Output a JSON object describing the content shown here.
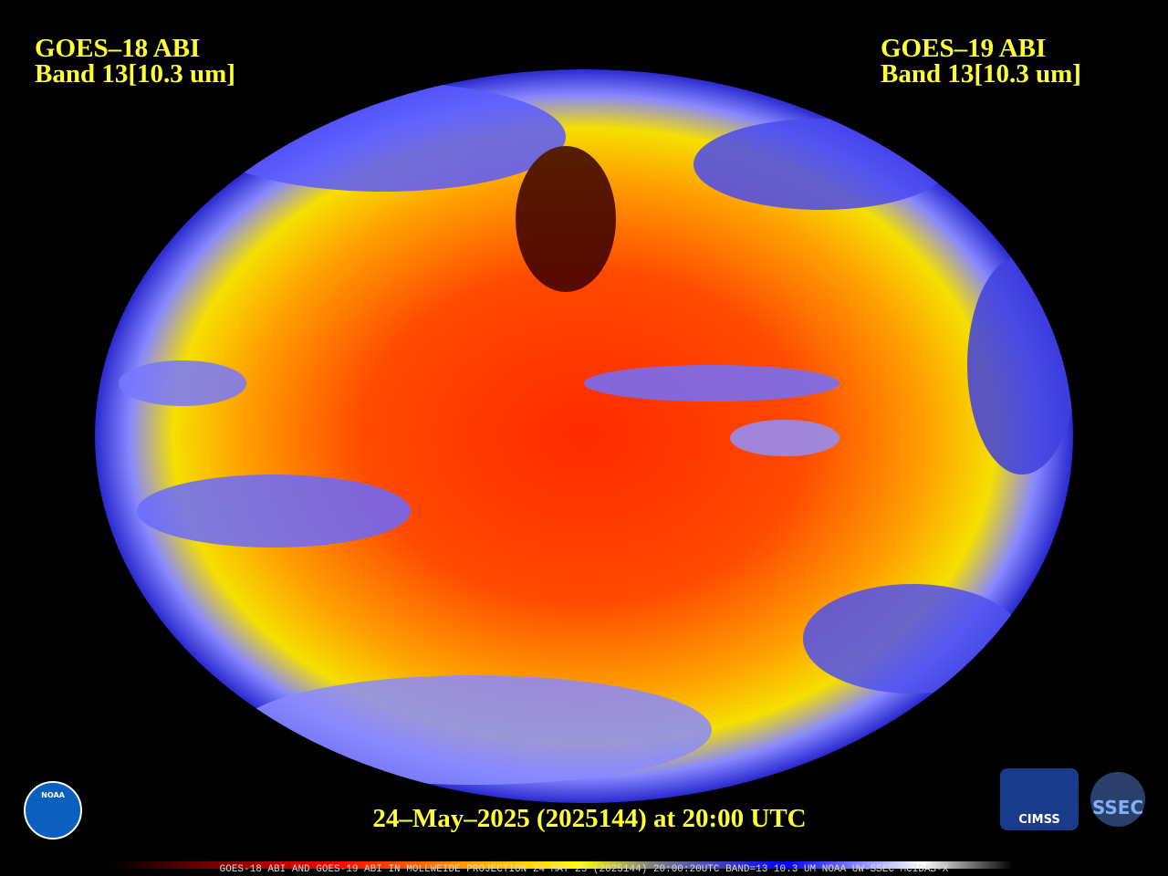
{
  "header": {
    "left": {
      "line1": "GOES–18 ABI",
      "line2": "Band 13[10.3 um]"
    },
    "right": {
      "line1": "GOES–19 ABI",
      "line2": "Band 13[10.3 um]"
    }
  },
  "footer": {
    "timestamp": "24–May–2025 (2025144) at 20:00 UTC",
    "caption": "GOES-18 ABI AND GOES-19 ABI IN MOLLWEIDE PROJECTION 24 MAY 25 (2025144) 20:00:20UTC BAND=13 10.3 UM NOAA UW-SSEC MCIDAS-X"
  },
  "logos": {
    "noaa": "NOAA",
    "cimss": "CIMSS",
    "ssec": "SSEC"
  }
}
